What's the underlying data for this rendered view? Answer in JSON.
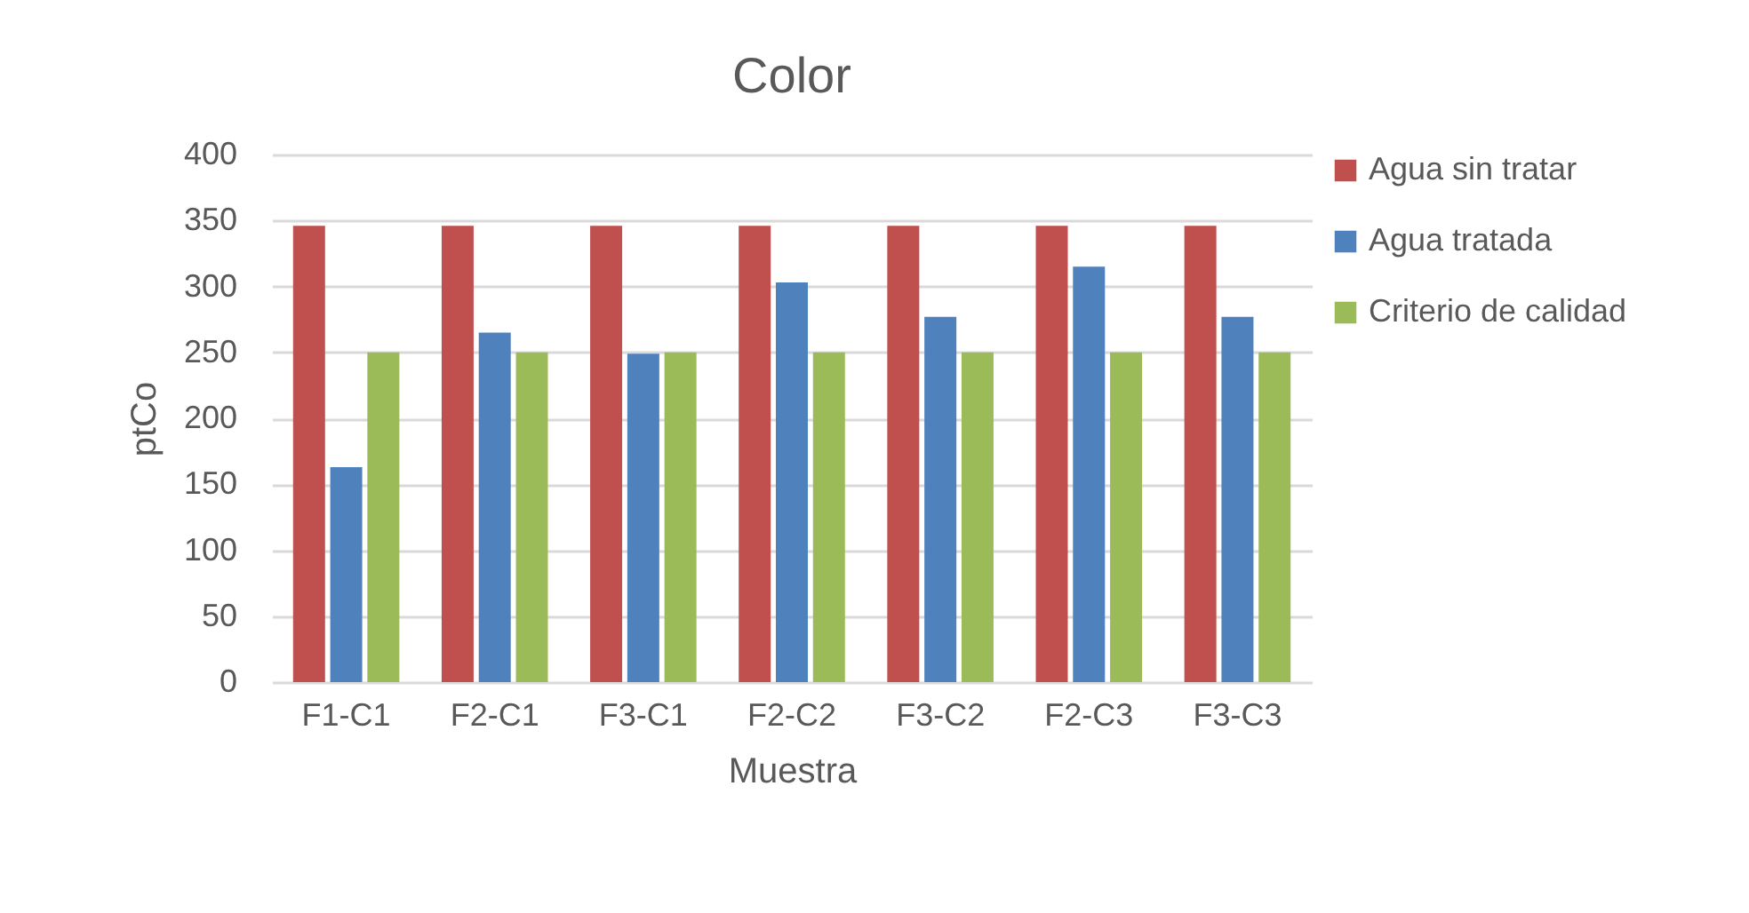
{
  "chart_data": {
    "type": "bar",
    "title": "Color",
    "xlabel": "Muestra",
    "ylabel": "ptCo",
    "categories": [
      "F1-C1",
      "F2-C1",
      "F3-C1",
      "F2-C2",
      "F3-C2",
      "F2-C3",
      "F3-C3"
    ],
    "series": [
      {
        "name": "Agua sin tratar",
        "color": "#c0504d",
        "values": [
          346,
          346,
          346,
          346,
          346,
          346,
          346
        ]
      },
      {
        "name": "Agua tratada",
        "color": "#4f81bd",
        "values": [
          163,
          265,
          249,
          303,
          277,
          315,
          277
        ]
      },
      {
        "name": "Criterio de calidad",
        "color": "#9bbb59",
        "values": [
          250,
          250,
          250,
          250,
          250,
          250,
          250
        ]
      }
    ],
    "ylim": [
      0,
      400
    ],
    "yticks": [
      0,
      50,
      100,
      150,
      200,
      250,
      300,
      350,
      400
    ],
    "grid": "y",
    "legend": "right"
  }
}
